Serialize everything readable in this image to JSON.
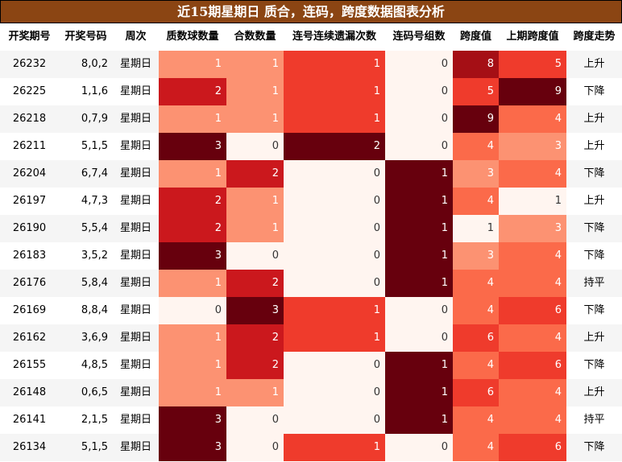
{
  "title": "近15期星期日 质合，连码，跨度数据图表分析",
  "chart_data": {
    "type": "table",
    "columns": [
      "开奖期号",
      "开奖号码",
      "周次",
      "质数球数量",
      "合数数量",
      "连号连续遗漏次数",
      "连码号组数",
      "跨度值",
      "上期跨度值",
      "跨度走势"
    ],
    "heat_columns": [
      "质数球数量",
      "合数数量",
      "连号连续遗漏次数",
      "连码号组数",
      "跨度值",
      "上期跨度值"
    ],
    "rows": [
      {
        "期号": "26232",
        "号码": "8,0,2",
        "周次": "星期日",
        "质数": 1,
        "合数": 1,
        "遗漏": 1,
        "连码": 0,
        "跨度": 8,
        "上期跨度": 5,
        "走势": "上升"
      },
      {
        "期号": "26225",
        "号码": "1,1,6",
        "周次": "星期日",
        "质数": 2,
        "合数": 1,
        "遗漏": 1,
        "连码": 0,
        "跨度": 5,
        "上期跨度": 9,
        "走势": "下降"
      },
      {
        "期号": "26218",
        "号码": "0,7,9",
        "周次": "星期日",
        "质数": 1,
        "合数": 1,
        "遗漏": 1,
        "连码": 0,
        "跨度": 9,
        "上期跨度": 4,
        "走势": "上升"
      },
      {
        "期号": "26211",
        "号码": "5,1,5",
        "周次": "星期日",
        "质数": 3,
        "合数": 0,
        "遗漏": 2,
        "连码": 0,
        "跨度": 4,
        "上期跨度": 3,
        "走势": "上升"
      },
      {
        "期号": "26204",
        "号码": "6,7,4",
        "周次": "星期日",
        "质数": 1,
        "合数": 2,
        "遗漏": 0,
        "连码": 1,
        "跨度": 3,
        "上期跨度": 4,
        "走势": "下降"
      },
      {
        "期号": "26197",
        "号码": "4,7,3",
        "周次": "星期日",
        "质数": 2,
        "合数": 1,
        "遗漏": 0,
        "连码": 1,
        "跨度": 4,
        "上期跨度": 1,
        "走势": "上升"
      },
      {
        "期号": "26190",
        "号码": "5,5,4",
        "周次": "星期日",
        "质数": 2,
        "合数": 1,
        "遗漏": 0,
        "连码": 1,
        "跨度": 1,
        "上期跨度": 3,
        "走势": "下降"
      },
      {
        "期号": "26183",
        "号码": "3,5,2",
        "周次": "星期日",
        "质数": 3,
        "合数": 0,
        "遗漏": 0,
        "连码": 1,
        "跨度": 3,
        "上期跨度": 4,
        "走势": "下降"
      },
      {
        "期号": "26176",
        "号码": "5,8,4",
        "周次": "星期日",
        "质数": 1,
        "合数": 2,
        "遗漏": 0,
        "连码": 1,
        "跨度": 4,
        "上期跨度": 4,
        "走势": "持平"
      },
      {
        "期号": "26169",
        "号码": "8,8,4",
        "周次": "星期日",
        "质数": 0,
        "合数": 3,
        "遗漏": 1,
        "连码": 0,
        "跨度": 4,
        "上期跨度": 6,
        "走势": "下降"
      },
      {
        "期号": "26162",
        "号码": "3,6,9",
        "周次": "星期日",
        "质数": 1,
        "合数": 2,
        "遗漏": 1,
        "连码": 0,
        "跨度": 6,
        "上期跨度": 4,
        "走势": "上升"
      },
      {
        "期号": "26155",
        "号码": "4,8,5",
        "周次": "星期日",
        "质数": 1,
        "合数": 2,
        "遗漏": 0,
        "连码": 1,
        "跨度": 4,
        "上期跨度": 6,
        "走势": "下降"
      },
      {
        "期号": "26148",
        "号码": "0,6,5",
        "周次": "星期日",
        "质数": 1,
        "合数": 1,
        "遗漏": 0,
        "连码": 1,
        "跨度": 6,
        "上期跨度": 4,
        "走势": "上升"
      },
      {
        "期号": "26141",
        "号码": "2,1,5",
        "周次": "星期日",
        "质数": 3,
        "合数": 0,
        "遗漏": 0,
        "连码": 1,
        "跨度": 4,
        "上期跨度": 4,
        "走势": "持平"
      },
      {
        "期号": "26134",
        "号码": "5,1,5",
        "周次": "星期日",
        "质数": 3,
        "合数": 0,
        "遗漏": 1,
        "连码": 0,
        "跨度": 4,
        "上期跨度": 6,
        "走势": "下降"
      }
    ]
  },
  "colors": {
    "title_bg": "#8b4513",
    "stripe": "#f5f5f5",
    "heat_scale": [
      "#fff5f0",
      "#fcbba1",
      "#fc9272",
      "#fb6a4a",
      "#ef3b2c",
      "#cb181d",
      "#a50f15",
      "#67000d"
    ]
  }
}
